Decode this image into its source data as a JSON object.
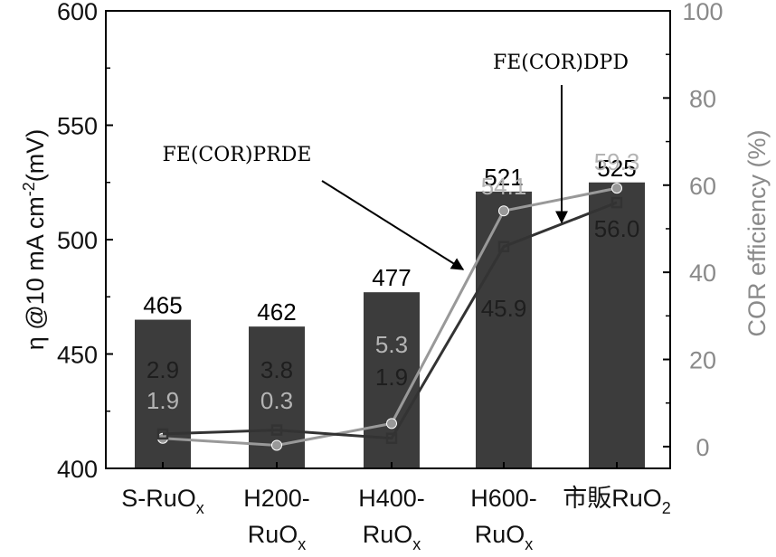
{
  "chart_data": {
    "type": "bar+line",
    "categories": [
      {
        "label": "S-RuO",
        "sub": "x",
        "line2": "",
        "line2_sub": ""
      },
      {
        "label": "H200-",
        "sub": "",
        "line2": "RuO",
        "line2_sub": "x"
      },
      {
        "label": "H400-",
        "sub": "",
        "line2": "RuO",
        "line2_sub": "x"
      },
      {
        "label": "H600-",
        "sub": "",
        "line2": "RuO",
        "line2_sub": "x"
      },
      {
        "label": "市販RuO",
        "sub": "2",
        "line2": "",
        "line2_sub": ""
      }
    ],
    "bars": {
      "axis": "left",
      "values": [
        465,
        462,
        477,
        521,
        525
      ],
      "labels": [
        "465",
        "462",
        "477",
        "521",
        "525"
      ],
      "color": "#3c3c3c"
    },
    "series": [
      {
        "name": "FE(COR)PRDE",
        "axis": "right",
        "values": [
          1.9,
          0.3,
          5.3,
          54.1,
          59.3
        ],
        "labels": [
          "1.9",
          "0.3",
          "5.3",
          "54.1",
          "59.3"
        ],
        "color": "#999999",
        "marker": "circle"
      },
      {
        "name": "FE(COR)DPD",
        "axis": "right",
        "values": [
          2.9,
          3.8,
          1.9,
          45.9,
          56.0
        ],
        "labels": [
          "2.9",
          "3.8",
          "1.9",
          "45.9",
          "56.0"
        ],
        "color": "#333333",
        "marker": "square"
      }
    ],
    "y_left": {
      "label_prefix": "η @10 mA cm",
      "label_sup": "-2",
      "label_suffix": "(mV)",
      "range": [
        400,
        600
      ],
      "ticks": [
        "400",
        "450",
        "500",
        "550",
        "600"
      ]
    },
    "y_right": {
      "label": "COR efficiency (%)",
      "range": [
        -5,
        100
      ],
      "ticks": [
        "0",
        "20",
        "40",
        "60",
        "80",
        "100"
      ],
      "color": "#8a8a8a"
    },
    "annotations": [
      {
        "text": "FE(COR)PRDE",
        "points_to": "FE(COR)PRDE",
        "category_index": 3
      },
      {
        "text": "FE(COR)DPD",
        "points_to": "FE(COR)DPD",
        "category_index": 4
      }
    ]
  }
}
